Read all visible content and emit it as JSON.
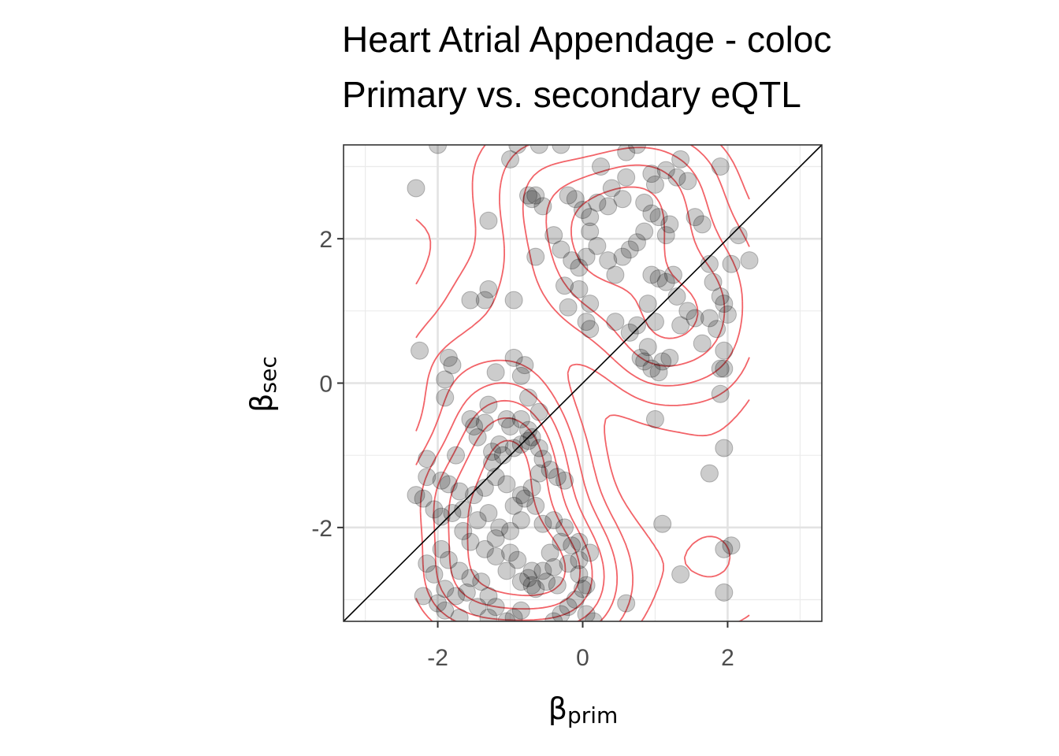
{
  "title_line1": "Heart Atrial Appendage - coloc",
  "title_line2": "Primary vs. secondary eQTL",
  "chart_data": {
    "type": "scatter",
    "xlabel": "βprim",
    "ylabel": "βsec",
    "xlabel_symbol": "β",
    "xlabel_sub": "prim",
    "ylabel_symbol": "β",
    "ylabel_sub": "sec",
    "xlim": [
      -3.3,
      3.3
    ],
    "ylim": [
      -3.3,
      3.3
    ],
    "x_ticks": [
      -2,
      0,
      2
    ],
    "y_ticks": [
      -2,
      0,
      2
    ],
    "x_tick_labels": [
      "-2",
      "0",
      "2"
    ],
    "y_tick_labels": [
      "-2",
      "0",
      "2"
    ],
    "grid": true,
    "reference_line": "y = x",
    "point_color": "#000000",
    "point_alpha": 0.2,
    "contour_color": "#f0484e",
    "series": [
      {
        "type": "scatter",
        "points": [
          [
            -2.3,
            2.7
          ],
          [
            -2.0,
            3.3
          ],
          [
            -1.3,
            2.25
          ],
          [
            -1.3,
            1.3
          ],
          [
            -1.35,
            1.15
          ],
          [
            -1.55,
            1.15
          ],
          [
            -0.95,
            1.15
          ],
          [
            -1.0,
            3.1
          ],
          [
            -0.9,
            3.3
          ],
          [
            -0.75,
            2.6
          ],
          [
            -0.65,
            2.6
          ],
          [
            -0.7,
            2.55
          ],
          [
            -0.55,
            2.45
          ],
          [
            -0.6,
            3.3
          ],
          [
            -0.3,
            3.3
          ],
          [
            -0.2,
            2.6
          ],
          [
            -0.1,
            2.55
          ],
          [
            0.0,
            2.4
          ],
          [
            0.1,
            2.3
          ],
          [
            0.2,
            2.5
          ],
          [
            0.35,
            2.45
          ],
          [
            0.25,
            3.0
          ],
          [
            0.4,
            2.7
          ],
          [
            0.55,
            2.55
          ],
          [
            0.6,
            2.85
          ],
          [
            0.6,
            3.2
          ],
          [
            0.75,
            3.3
          ],
          [
            0.85,
            2.5
          ],
          [
            0.95,
            2.9
          ],
          [
            1.0,
            2.75
          ],
          [
            1.15,
            2.95
          ],
          [
            1.3,
            2.85
          ],
          [
            1.35,
            3.1
          ],
          [
            1.45,
            2.8
          ],
          [
            1.55,
            2.3
          ],
          [
            1.65,
            2.2
          ],
          [
            1.9,
            3.0
          ],
          [
            2.15,
            2.05
          ],
          [
            2.05,
            1.65
          ],
          [
            2.3,
            1.7
          ],
          [
            1.75,
            1.65
          ],
          [
            1.8,
            1.4
          ],
          [
            1.9,
            1.2
          ],
          [
            1.95,
            1.1
          ],
          [
            2.0,
            0.95
          ],
          [
            1.75,
            0.9
          ],
          [
            1.85,
            0.75
          ],
          [
            1.95,
            0.45
          ],
          [
            1.9,
            0.2
          ],
          [
            1.95,
            0.2
          ],
          [
            1.9,
            -0.15
          ],
          [
            1.65,
            0.55
          ],
          [
            1.55,
            0.9
          ],
          [
            1.45,
            1.0
          ],
          [
            1.3,
            1.2
          ],
          [
            1.25,
            1.5
          ],
          [
            1.35,
            0.8
          ],
          [
            1.2,
            0.35
          ],
          [
            1.1,
            0.3
          ],
          [
            1.05,
            0.15
          ],
          [
            0.95,
            0.2
          ],
          [
            0.85,
            0.3
          ],
          [
            0.8,
            0.35
          ],
          [
            0.9,
            0.5
          ],
          [
            0.75,
            0.8
          ],
          [
            1.0,
            0.85
          ],
          [
            0.9,
            1.1
          ],
          [
            0.95,
            1.5
          ],
          [
            1.05,
            1.45
          ],
          [
            1.15,
            1.4
          ],
          [
            1.15,
            2.05
          ],
          [
            1.2,
            2.2
          ],
          [
            1.05,
            2.3
          ],
          [
            0.95,
            2.35
          ],
          [
            0.85,
            2.1
          ],
          [
            0.75,
            1.95
          ],
          [
            0.65,
            1.85
          ],
          [
            0.55,
            1.75
          ],
          [
            0.45,
            1.5
          ],
          [
            0.35,
            1.7
          ],
          [
            0.2,
            1.9
          ],
          [
            0.1,
            2.1
          ],
          [
            0.05,
            1.75
          ],
          [
            -0.05,
            1.6
          ],
          [
            -0.15,
            1.7
          ],
          [
            -0.3,
            1.85
          ],
          [
            -0.4,
            2.05
          ],
          [
            -0.25,
            1.35
          ],
          [
            -0.05,
            1.3
          ],
          [
            0.1,
            1.1
          ],
          [
            -0.2,
            1.05
          ],
          [
            0.05,
            0.85
          ],
          [
            0.1,
            0.75
          ],
          [
            0.45,
            0.85
          ],
          [
            0.65,
            0.7
          ],
          [
            -0.65,
            1.75
          ],
          [
            -2.25,
            0.45
          ],
          [
            -1.85,
            0.35
          ],
          [
            -1.8,
            0.25
          ],
          [
            -1.9,
            0.05
          ],
          [
            -1.9,
            -0.2
          ],
          [
            -1.2,
            0.15
          ],
          [
            -0.95,
            0.35
          ],
          [
            -0.8,
            0.25
          ],
          [
            -0.85,
            0.1
          ],
          [
            -0.75,
            -0.2
          ],
          [
            -0.6,
            -0.4
          ],
          [
            -0.85,
            -0.5
          ],
          [
            -1.0,
            -0.6
          ],
          [
            -1.15,
            -0.85
          ],
          [
            -1.25,
            -0.95
          ],
          [
            -1.35,
            -0.55
          ],
          [
            -1.5,
            -0.6
          ],
          [
            -1.55,
            -0.5
          ],
          [
            -1.45,
            -0.75
          ],
          [
            -1.25,
            -1.1
          ],
          [
            -1.1,
            -1.0
          ],
          [
            -0.95,
            -0.9
          ],
          [
            -0.85,
            -0.85
          ],
          [
            -0.75,
            -0.8
          ],
          [
            -0.7,
            -0.75
          ],
          [
            -0.75,
            -0.65
          ],
          [
            -0.6,
            -0.9
          ],
          [
            -0.55,
            -1.05
          ],
          [
            -0.45,
            -1.2
          ],
          [
            -0.35,
            -1.3
          ],
          [
            -0.25,
            -1.35
          ],
          [
            -0.6,
            -1.25
          ],
          [
            -0.7,
            -1.45
          ],
          [
            -0.85,
            -1.55
          ],
          [
            -0.95,
            -1.7
          ],
          [
            -1.05,
            -1.4
          ],
          [
            -1.2,
            -1.3
          ],
          [
            -1.35,
            -1.45
          ],
          [
            -1.5,
            -1.55
          ],
          [
            -1.7,
            -1.5
          ],
          [
            -1.85,
            -1.4
          ],
          [
            -1.95,
            -1.35
          ],
          [
            -2.15,
            -1.3
          ],
          [
            -2.15,
            -1.05
          ],
          [
            -1.75,
            -1.0
          ],
          [
            -2.3,
            -1.55
          ],
          [
            -2.2,
            -1.6
          ],
          [
            -2.05,
            -1.75
          ],
          [
            -1.95,
            -1.85
          ],
          [
            -1.8,
            -1.8
          ],
          [
            -1.65,
            -1.75
          ],
          [
            -1.45,
            -1.9
          ],
          [
            -1.3,
            -1.8
          ],
          [
            -1.15,
            -2.0
          ],
          [
            -1.0,
            -2.05
          ],
          [
            -0.85,
            -1.9
          ],
          [
            -0.8,
            -1.6
          ],
          [
            -0.65,
            -1.7
          ],
          [
            -0.55,
            -1.95
          ],
          [
            -0.4,
            -1.9
          ],
          [
            -0.25,
            -2.0
          ],
          [
            -0.3,
            -2.2
          ],
          [
            -0.15,
            -2.25
          ],
          [
            -0.05,
            -2.2
          ],
          [
            -0.2,
            -2.5
          ],
          [
            -0.4,
            -2.55
          ],
          [
            -0.55,
            -2.6
          ],
          [
            -0.7,
            -2.6
          ],
          [
            -0.75,
            -2.7
          ],
          [
            -0.85,
            -2.75
          ],
          [
            -0.7,
            -2.8
          ],
          [
            -0.65,
            -2.85
          ],
          [
            -0.5,
            -2.75
          ],
          [
            -0.35,
            -2.8
          ],
          [
            -0.05,
            -2.65
          ],
          [
            0.0,
            -2.85
          ],
          [
            -0.1,
            -3.0
          ],
          [
            -0.2,
            -3.1
          ],
          [
            -0.3,
            -3.2
          ],
          [
            0.05,
            -3.2
          ],
          [
            0.15,
            -3.3
          ],
          [
            -0.4,
            -3.3
          ],
          [
            -0.85,
            -3.15
          ],
          [
            -0.95,
            -3.25
          ],
          [
            -1.05,
            -3.3
          ],
          [
            -1.2,
            -3.1
          ],
          [
            -1.3,
            -2.95
          ],
          [
            -1.4,
            -2.75
          ],
          [
            -1.55,
            -2.7
          ],
          [
            -1.7,
            -2.6
          ],
          [
            -1.85,
            -2.45
          ],
          [
            -1.95,
            -2.3
          ],
          [
            -2.15,
            -2.5
          ],
          [
            -2.05,
            -2.65
          ],
          [
            -1.9,
            -2.85
          ],
          [
            -1.75,
            -2.95
          ],
          [
            -1.6,
            -2.9
          ],
          [
            -1.45,
            -3.1
          ],
          [
            -1.3,
            -3.25
          ],
          [
            -1.7,
            -3.25
          ],
          [
            -1.9,
            -3.15
          ],
          [
            -2.0,
            -3.05
          ],
          [
            -2.2,
            -2.95
          ],
          [
            -1.2,
            -2.4
          ],
          [
            -1.35,
            -2.3
          ],
          [
            -1.0,
            -2.35
          ],
          [
            -0.9,
            -2.45
          ],
          [
            -1.05,
            -2.6
          ],
          [
            -1.55,
            -2.2
          ],
          [
            -1.65,
            -2.05
          ],
          [
            -1.2,
            -2.15
          ],
          [
            -0.45,
            -2.35
          ],
          [
            0.1,
            -2.35
          ],
          [
            -0.05,
            -2.45
          ],
          [
            0.05,
            -2.8
          ],
          [
            0.6,
            -3.05
          ],
          [
            1.0,
            -0.5
          ],
          [
            1.1,
            -1.95
          ],
          [
            1.35,
            -2.65
          ],
          [
            1.75,
            -1.25
          ],
          [
            1.95,
            -0.9
          ],
          [
            1.95,
            -2.3
          ],
          [
            2.05,
            -2.25
          ],
          [
            1.95,
            -2.9
          ],
          [
            -1.05,
            -0.5
          ],
          [
            -1.3,
            -0.3
          ]
        ]
      }
    ]
  }
}
